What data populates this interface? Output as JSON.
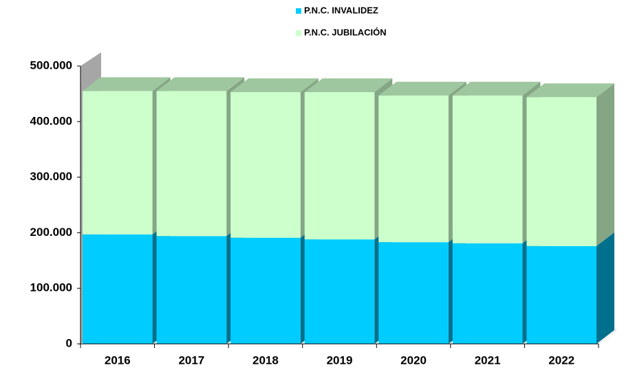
{
  "chart_data": {
    "type": "bar",
    "stacked": true,
    "categories": [
      "2016",
      "2017",
      "2018",
      "2019",
      "2020",
      "2021",
      "2022"
    ],
    "series": [
      {
        "name": "P.N.C. INVALIDEZ",
        "color": "#00ccff",
        "values": [
          197000,
          194000,
          191000,
          188000,
          183000,
          181000,
          176000
        ]
      },
      {
        "name": "P.N.C. JUBILACIÓN",
        "color": "#ccffcc",
        "values": [
          258000,
          261000,
          262000,
          265000,
          264000,
          266000,
          268000
        ]
      }
    ],
    "ylim": [
      0,
      500000
    ],
    "yticks": [
      0,
      {
        "value": 100000,
        "label": "100.000"
      },
      {
        "value": 200000,
        "label": "200.000"
      },
      {
        "value": 300000,
        "label": "300.000"
      },
      {
        "value": 400000,
        "label": "400.000"
      },
      {
        "value": 500000,
        "label": "500.000"
      }
    ],
    "legend": "top"
  }
}
